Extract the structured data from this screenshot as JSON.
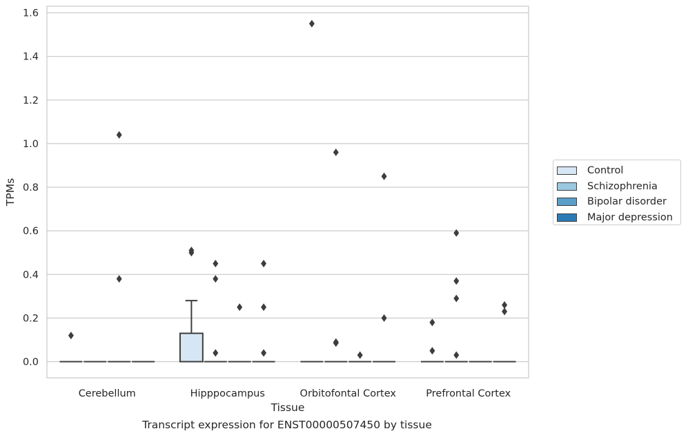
{
  "chart_data": {
    "type": "box",
    "xlabel": "Tissue",
    "ylabel": "TPMs",
    "ylim": [
      -0.075,
      1.63
    ],
    "yticks": [
      0.0,
      0.2,
      0.4,
      0.6,
      0.8,
      1.0,
      1.2,
      1.4,
      1.6
    ],
    "ytick_labels": [
      "0.0",
      "0.2",
      "0.4",
      "0.6",
      "0.8",
      "1.0",
      "1.2",
      "1.4",
      "1.6"
    ],
    "grid": true,
    "legend_position": "right",
    "categories": [
      "Cerebellum",
      "Hipppocampus",
      "Orbitofontal Cortex",
      "Prefrontal Cortex"
    ],
    "series": [
      {
        "name": "Control",
        "color": "#d6e6f4",
        "boxes": [
          {
            "q1": 0,
            "median": 0,
            "q3": 0,
            "whisker_low": 0,
            "whisker_high": 0,
            "outliers": [
              0.12
            ]
          },
          {
            "q1": 0,
            "median": 0,
            "q3": 0.13,
            "whisker_low": 0,
            "whisker_high": 0.28,
            "outliers": [
              0.5,
              0.51
            ]
          },
          {
            "q1": 0,
            "median": 0,
            "q3": 0,
            "whisker_low": 0,
            "whisker_high": 0,
            "outliers": [
              1.55
            ]
          },
          {
            "q1": 0,
            "median": 0,
            "q3": 0,
            "whisker_low": 0,
            "whisker_high": 0,
            "outliers": [
              0.18,
              0.05
            ]
          }
        ]
      },
      {
        "name": "Schizophrenia",
        "color": "#9ac8e0",
        "boxes": [
          {
            "q1": 0,
            "median": 0,
            "q3": 0,
            "whisker_low": 0,
            "whisker_high": 0,
            "outliers": []
          },
          {
            "q1": 0,
            "median": 0,
            "q3": 0,
            "whisker_low": 0,
            "whisker_high": 0,
            "outliers": [
              0.45,
              0.38,
              0.04
            ]
          },
          {
            "q1": 0,
            "median": 0,
            "q3": 0,
            "whisker_low": 0,
            "whisker_high": 0,
            "outliers": [
              0.96,
              0.09,
              0.085
            ]
          },
          {
            "q1": 0,
            "median": 0,
            "q3": 0,
            "whisker_low": 0,
            "whisker_high": 0,
            "outliers": [
              0.59,
              0.37,
              0.29,
              0.03
            ]
          }
        ]
      },
      {
        "name": "Bipolar disorder",
        "color": "#5a9ec9",
        "boxes": [
          {
            "q1": 0,
            "median": 0,
            "q3": 0,
            "whisker_low": 0,
            "whisker_high": 0,
            "outliers": [
              1.04,
              0.38
            ]
          },
          {
            "q1": 0,
            "median": 0,
            "q3": 0,
            "whisker_low": 0,
            "whisker_high": 0,
            "outliers": [
              0.25
            ]
          },
          {
            "q1": 0,
            "median": 0,
            "q3": 0,
            "whisker_low": 0,
            "whisker_high": 0,
            "outliers": [
              0.03
            ]
          },
          {
            "q1": 0,
            "median": 0,
            "q3": 0,
            "whisker_low": 0,
            "whisker_high": 0,
            "outliers": []
          }
        ]
      },
      {
        "name": "Major depression",
        "color": "#2c7bb6",
        "boxes": [
          {
            "q1": 0,
            "median": 0,
            "q3": 0,
            "whisker_low": 0,
            "whisker_high": 0,
            "outliers": []
          },
          {
            "q1": 0,
            "median": 0,
            "q3": 0,
            "whisker_low": 0,
            "whisker_high": 0,
            "outliers": [
              0.45,
              0.25,
              0.04
            ]
          },
          {
            "q1": 0,
            "median": 0,
            "q3": 0,
            "whisker_low": 0,
            "whisker_high": 0,
            "outliers": [
              0.85,
              0.2
            ]
          },
          {
            "q1": 0,
            "median": 0,
            "q3": 0,
            "whisker_low": 0,
            "whisker_high": 0,
            "outliers": [
              0.26,
              0.23
            ]
          }
        ]
      }
    ]
  },
  "caption": "Transcript expression for ENST00000507450 by tissue"
}
